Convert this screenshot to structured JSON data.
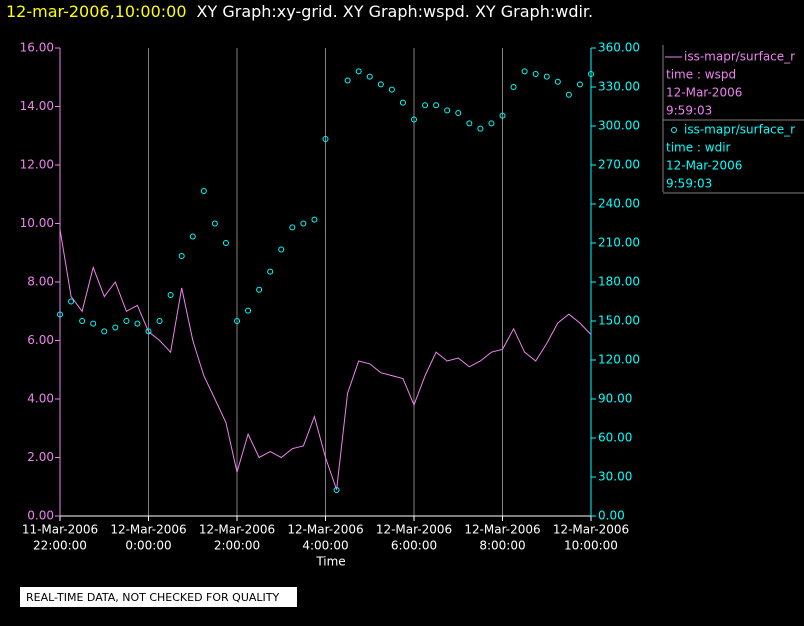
{
  "chart_data": {
    "type": "line",
    "title_time": "12-mar-2006,10:00:00",
    "title": "XY Graph:xy-grid.  XY Graph:wspd.  XY Graph:wdir.",
    "xlabel": "Time",
    "footer_note": "REAL-TIME DATA, NOT CHECKED FOR QUALITY",
    "grid": true,
    "x": [
      "2006-03-11T22:00",
      "2006-03-11T22:15",
      "2006-03-11T22:30",
      "2006-03-11T22:45",
      "2006-03-11T23:00",
      "2006-03-11T23:15",
      "2006-03-11T23:30",
      "2006-03-11T23:45",
      "2006-03-12T00:00",
      "2006-03-12T00:15",
      "2006-03-12T00:30",
      "2006-03-12T00:45",
      "2006-03-12T01:00",
      "2006-03-12T01:15",
      "2006-03-12T01:30",
      "2006-03-12T01:45",
      "2006-03-12T02:00",
      "2006-03-12T02:15",
      "2006-03-12T02:30",
      "2006-03-12T02:45",
      "2006-03-12T03:00",
      "2006-03-12T03:15",
      "2006-03-12T03:30",
      "2006-03-12T03:45",
      "2006-03-12T04:00",
      "2006-03-12T04:15",
      "2006-03-12T04:30",
      "2006-03-12T04:45",
      "2006-03-12T05:00",
      "2006-03-12T05:15",
      "2006-03-12T05:30",
      "2006-03-12T05:45",
      "2006-03-12T06:00",
      "2006-03-12T06:15",
      "2006-03-12T06:30",
      "2006-03-12T06:45",
      "2006-03-12T07:00",
      "2006-03-12T07:15",
      "2006-03-12T07:30",
      "2006-03-12T07:45",
      "2006-03-12T08:00",
      "2006-03-12T08:15",
      "2006-03-12T08:30",
      "2006-03-12T08:45",
      "2006-03-12T09:00",
      "2006-03-12T09:15",
      "2006-03-12T09:30",
      "2006-03-12T09:45",
      "2006-03-12T10:00"
    ],
    "xlim": [
      "2006-03-11T22:00",
      "2006-03-12T10:00"
    ],
    "xticks": [
      {
        "value": "2006-03-11T22:00",
        "label": [
          "11-Mar-2006",
          "22:00:00"
        ]
      },
      {
        "value": "2006-03-12T00:00",
        "label": [
          "12-Mar-2006",
          "0:00:00"
        ]
      },
      {
        "value": "2006-03-12T02:00",
        "label": [
          "12-Mar-2006",
          "2:00:00"
        ]
      },
      {
        "value": "2006-03-12T04:00",
        "label": [
          "12-Mar-2006",
          "4:00:00"
        ]
      },
      {
        "value": "2006-03-12T06:00",
        "label": [
          "12-Mar-2006",
          "6:00:00"
        ]
      },
      {
        "value": "2006-03-12T08:00",
        "label": [
          "12-Mar-2006",
          "8:00:00"
        ]
      },
      {
        "value": "2006-03-12T10:00",
        "label": [
          "12-Mar-2006",
          "10:00:00"
        ]
      }
    ],
    "ylim": [
      0,
      16
    ],
    "yticks": [
      {
        "value": 0,
        "label": "0.00"
      },
      {
        "value": 2,
        "label": "2.00"
      },
      {
        "value": 4,
        "label": "4.00"
      },
      {
        "value": 6,
        "label": "6.00"
      },
      {
        "value": 8,
        "label": "8.00"
      },
      {
        "value": 10,
        "label": "10.00"
      },
      {
        "value": 12,
        "label": "12.00"
      },
      {
        "value": 14,
        "label": "14.00"
      },
      {
        "value": 16,
        "label": "16.00"
      }
    ],
    "y2lim": [
      0,
      360
    ],
    "y2ticks": [
      {
        "value": 0,
        "label": "0.00"
      },
      {
        "value": 30,
        "label": "30.00"
      },
      {
        "value": 60,
        "label": "60.00"
      },
      {
        "value": 90,
        "label": "90.00"
      },
      {
        "value": 120,
        "label": "120.00"
      },
      {
        "value": 150,
        "label": "150.00"
      },
      {
        "value": 180,
        "label": "180.00"
      },
      {
        "value": 210,
        "label": "210.00"
      },
      {
        "value": 240,
        "label": "240.00"
      },
      {
        "value": 270,
        "label": "270.00"
      },
      {
        "value": 300,
        "label": "300.00"
      },
      {
        "value": 330,
        "label": "330.00"
      },
      {
        "value": 360,
        "label": "360.00"
      }
    ],
    "series": [
      {
        "name": "iss-mapr/surface_r",
        "type": "line",
        "color": "#ee82ee",
        "legend": [
          "time : wspd",
          "12-Mar-2006",
          "9:59:03"
        ],
        "values": [
          9.8,
          7.5,
          7.0,
          8.5,
          7.5,
          8.0,
          7.0,
          7.2,
          6.3,
          6.0,
          5.6,
          7.8,
          6.0,
          4.8,
          4.0,
          3.2,
          1.5,
          2.8,
          2.0,
          2.2,
          2.0,
          2.3,
          2.4,
          3.4,
          2.0,
          0.9,
          4.2,
          5.3,
          5.2,
          4.9,
          4.8,
          4.7,
          3.8,
          4.8,
          5.6,
          5.3,
          5.4,
          5.1,
          5.3,
          5.6,
          5.7,
          6.4,
          5.6,
          5.3,
          5.9,
          6.6,
          6.9,
          6.6,
          6.2
        ]
      },
      {
        "name": "iss-mapr/surface_r",
        "type": "scatter",
        "axis": "y2",
        "color": "#00ffff",
        "legend": [
          "time : wdir",
          "12-Mar-2006",
          "9:59:03"
        ],
        "values": [
          155,
          165,
          150,
          148,
          142,
          145,
          150,
          148,
          142,
          150,
          170,
          200,
          215,
          250,
          225,
          210,
          150,
          158,
          174,
          188,
          205,
          222,
          225,
          228,
          290,
          20,
          335,
          342,
          338,
          332,
          328,
          318,
          305,
          316,
          316,
          312,
          310,
          302,
          298,
          302,
          308,
          330,
          342,
          340,
          338,
          334,
          324,
          332,
          340
        ]
      }
    ]
  }
}
